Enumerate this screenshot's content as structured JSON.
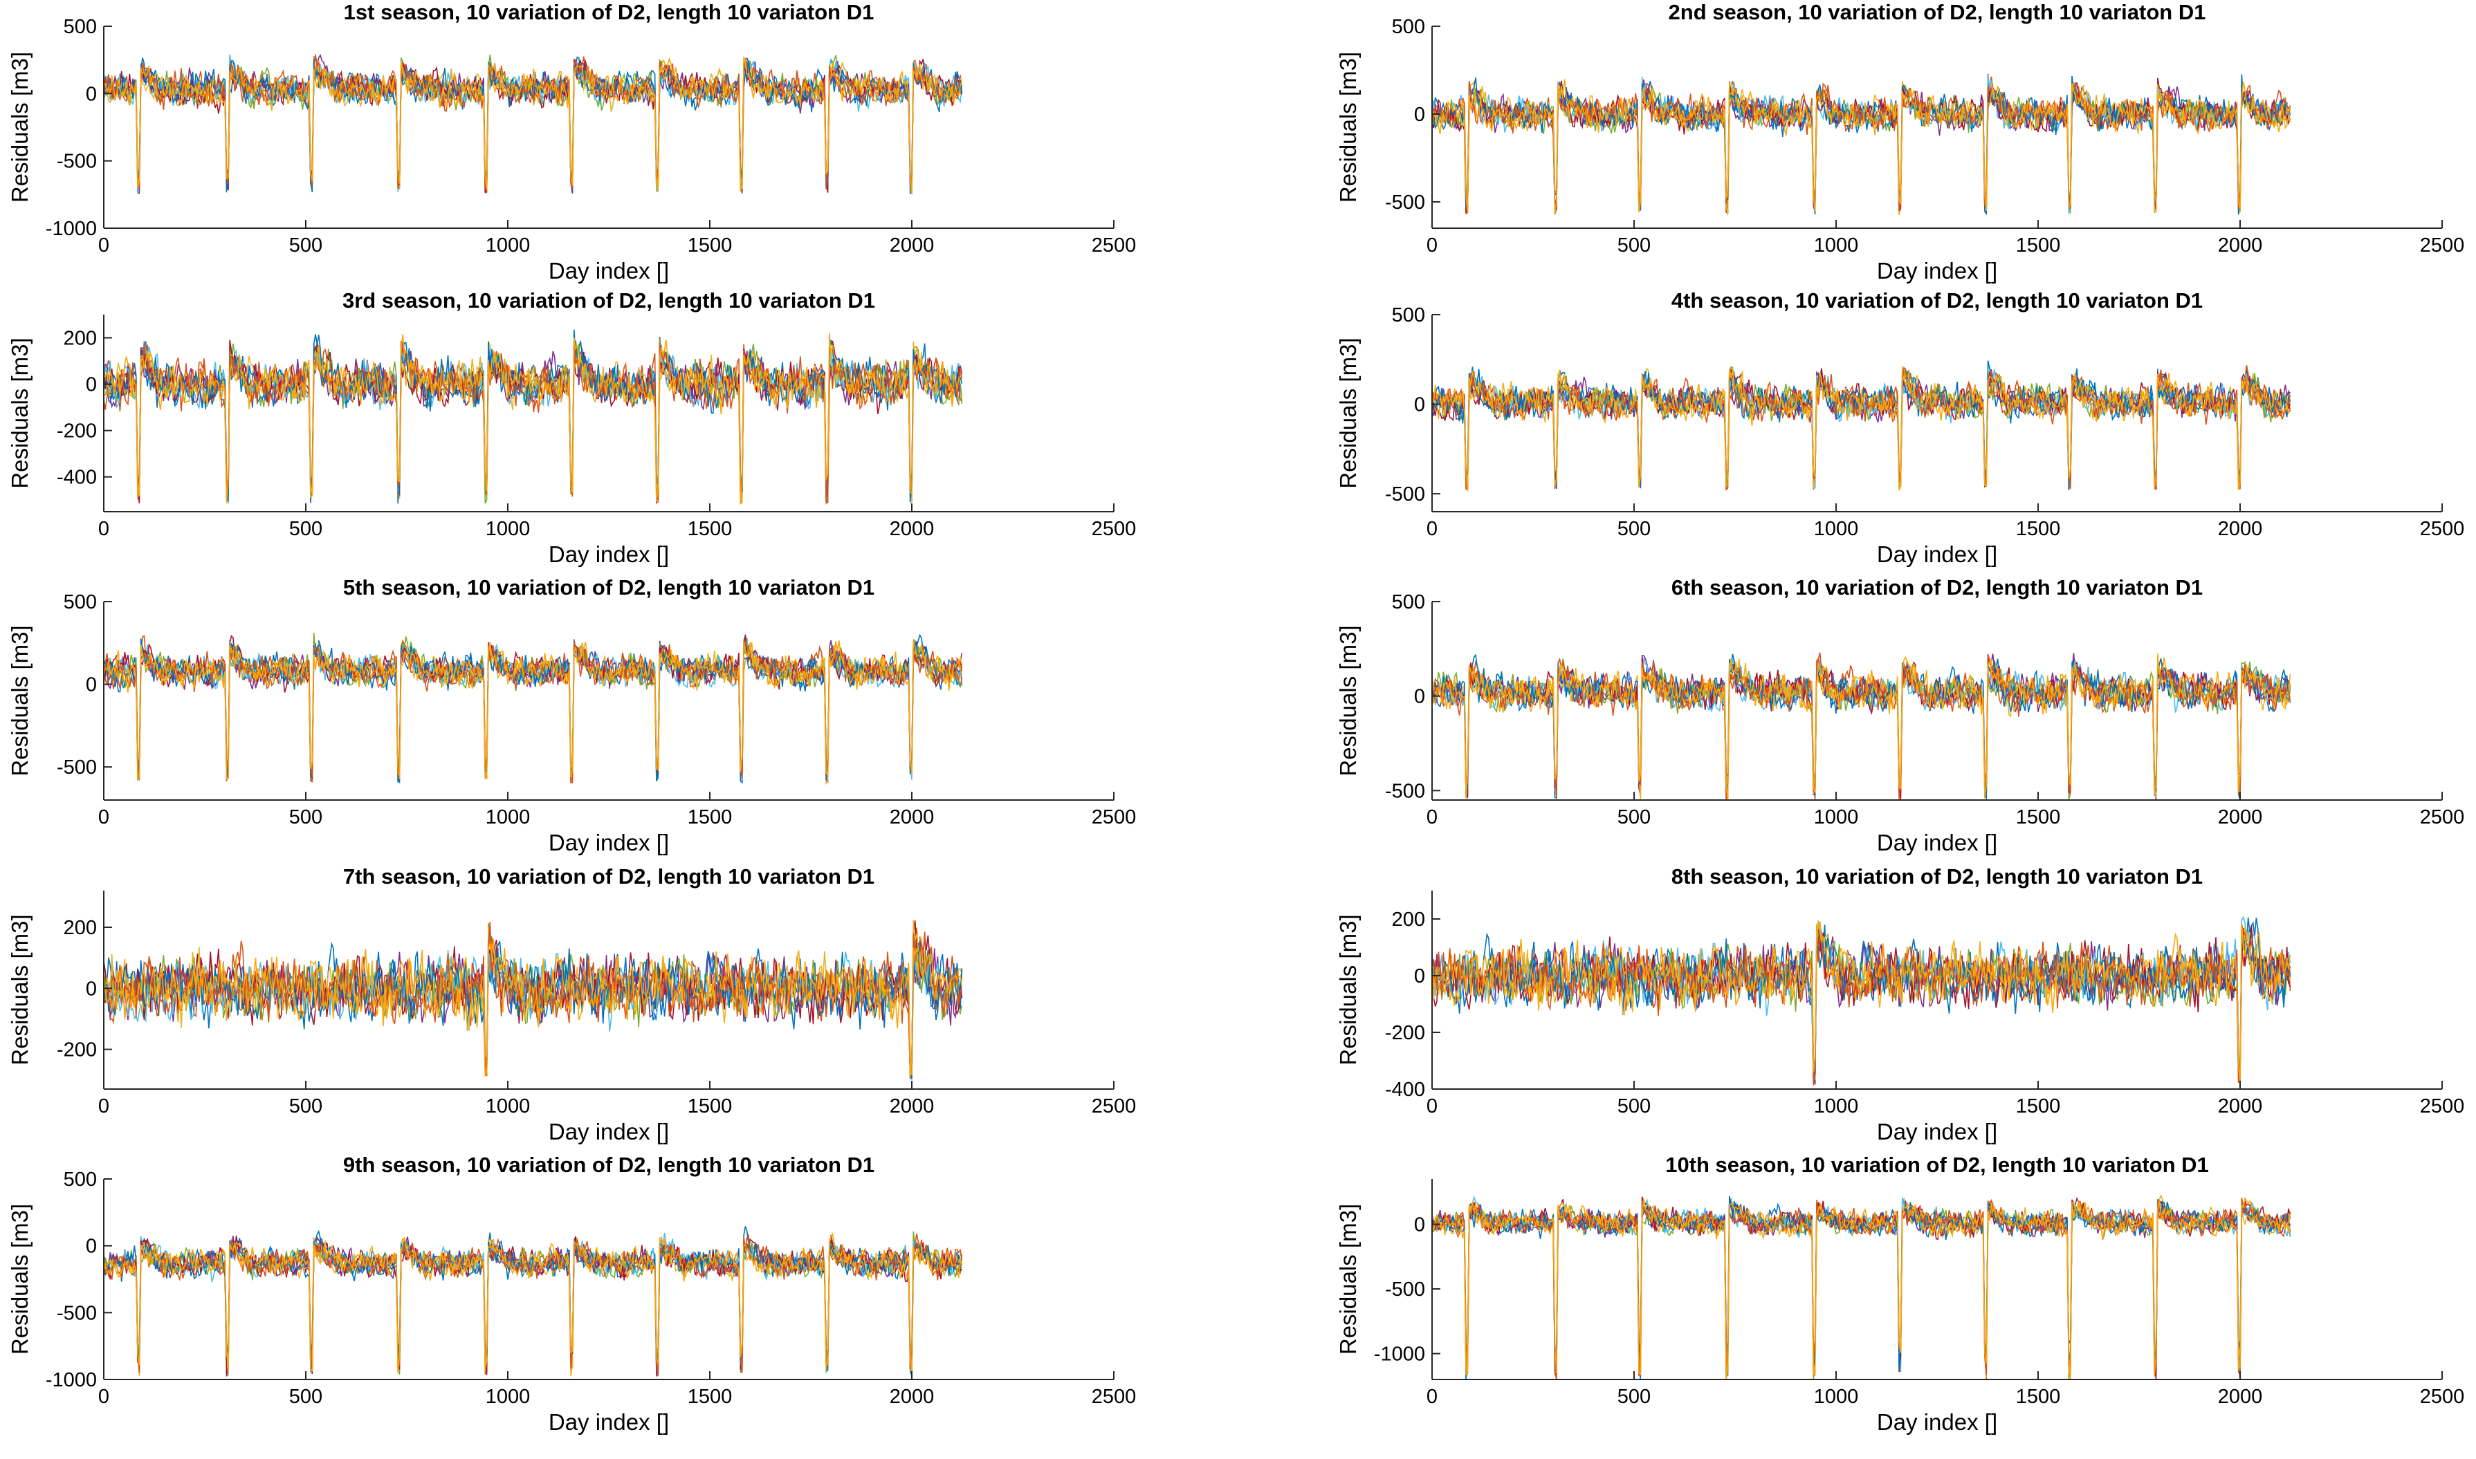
{
  "chart_data": [
    {
      "type": "line",
      "title": "1st season, 10 variation of D2, length 10 variaton D1",
      "xlabel": "Day index []",
      "ylabel": "Residuals [m3]",
      "xlim": [
        0,
        2500
      ],
      "ylim": [
        -1000,
        500
      ],
      "xticks": [
        "0",
        "500",
        "1000",
        "1500",
        "2000",
        "2500"
      ],
      "yticks": [
        "-1000",
        "-500",
        "0",
        "500"
      ],
      "ytick_values": [
        -1000,
        -500,
        0,
        500
      ],
      "n_days": 2125,
      "series_count": 10,
      "base": 30,
      "noise": 140,
      "spike_days": [
        85,
        305,
        515,
        730,
        945,
        1160,
        1370,
        1580,
        1790,
        2000
      ],
      "spike_depth": -650
    },
    {
      "type": "line",
      "title": "2nd season, 10 variation of D2, length 10 variaton D1",
      "xlabel": "Day index []",
      "ylabel": "Residuals [m3]",
      "xlim": [
        0,
        2500
      ],
      "ylim": [
        -650,
        500
      ],
      "xticks": [
        "0",
        "500",
        "1000",
        "1500",
        "2000",
        "2500"
      ],
      "yticks": [
        "-500",
        "0",
        "500"
      ],
      "ytick_values": [
        -500,
        0,
        500
      ],
      "n_days": 2125,
      "series_count": 10,
      "base": 0,
      "noise": 110,
      "spike_days": [
        85,
        305,
        515,
        730,
        945,
        1160,
        1370,
        1580,
        1790,
        2000
      ],
      "spike_depth": -500
    },
    {
      "type": "line",
      "title": "3rd season, 10 variation of D2, length 10 variaton D1",
      "xlabel": "Day index []",
      "ylabel": "Residuals [m3]",
      "xlim": [
        0,
        2500
      ],
      "ylim": [
        -550,
        300
      ],
      "xticks": [
        "0",
        "500",
        "1000",
        "1500",
        "2000",
        "2500"
      ],
      "yticks": [
        "-400",
        "-200",
        "0",
        "200"
      ],
      "ytick_values": [
        -400,
        -200,
        0,
        200
      ],
      "n_days": 2125,
      "series_count": 10,
      "base": 0,
      "noise": 110,
      "spike_days": [
        85,
        305,
        515,
        730,
        945,
        1160,
        1370,
        1580,
        1790,
        2000
      ],
      "spike_depth": -450
    },
    {
      "type": "line",
      "title": "4th season, 10 variation of D2, length 10 variaton D1",
      "xlabel": "Day index []",
      "ylabel": "Residuals [m3]",
      "xlim": [
        0,
        2500
      ],
      "ylim": [
        -600,
        500
      ],
      "xticks": [
        "0",
        "500",
        "1000",
        "1500",
        "2000",
        "2500"
      ],
      "yticks": [
        "-500",
        "0",
        "500"
      ],
      "ytick_values": [
        -500,
        0,
        500
      ],
      "n_days": 2125,
      "series_count": 10,
      "base": 10,
      "noise": 110,
      "spike_days": [
        85,
        305,
        515,
        730,
        945,
        1160,
        1370,
        1580,
        1790,
        2000
      ],
      "spike_depth": -420
    },
    {
      "type": "line",
      "title": "5th season, 10 variation of D2, length 10 variaton D1",
      "xlabel": "Day index []",
      "ylabel": "Residuals [m3]",
      "xlim": [
        0,
        2500
      ],
      "ylim": [
        -700,
        500
      ],
      "xticks": [
        "0",
        "500",
        "1000",
        "1500",
        "2000",
        "2500"
      ],
      "yticks": [
        "-500",
        "0",
        "500"
      ],
      "ytick_values": [
        -500,
        0,
        500
      ],
      "n_days": 2125,
      "series_count": 10,
      "base": 80,
      "noise": 110,
      "spike_days": [
        85,
        305,
        515,
        730,
        945,
        1160,
        1370,
        1580,
        1790,
        2000
      ],
      "spike_depth": -520
    },
    {
      "type": "line",
      "title": "6th season, 10 variation of D2, length 10 variaton D1",
      "xlabel": "Day index []",
      "ylabel": "Residuals [m3]",
      "xlim": [
        0,
        2500
      ],
      "ylim": [
        -550,
        500
      ],
      "xticks": [
        "0",
        "500",
        "1000",
        "1500",
        "2000",
        "2500"
      ],
      "yticks": [
        "-500",
        "0",
        "500"
      ],
      "ytick_values": [
        -500,
        0,
        500
      ],
      "n_days": 2125,
      "series_count": 10,
      "base": 20,
      "noise": 110,
      "spike_days": [
        85,
        305,
        515,
        730,
        945,
        1160,
        1370,
        1580,
        1790,
        2000
      ],
      "spike_depth": -480
    },
    {
      "type": "line",
      "title": "7th season, 10 variation of D2, length 10 variaton D1",
      "xlabel": "Day index []",
      "ylabel": "Residuals [m3]",
      "xlim": [
        0,
        2500
      ],
      "ylim": [
        -330,
        320
      ],
      "xticks": [
        "0",
        "500",
        "1000",
        "1500",
        "2000",
        "2500"
      ],
      "yticks": [
        "-200",
        "0",
        "200"
      ],
      "ytick_values": [
        -200,
        0,
        200
      ],
      "n_days": 2125,
      "series_count": 10,
      "base": 0,
      "noise": 120,
      "spike_days": [
        945,
        2000
      ],
      "spike_depth": -260
    },
    {
      "type": "line",
      "title": "8th season, 10 variation of D2, length 10 variaton D1",
      "xlabel": "Day index []",
      "ylabel": "Residuals [m3]",
      "xlim": [
        0,
        2500
      ],
      "ylim": [
        -400,
        300
      ],
      "xticks": [
        "0",
        "500",
        "1000",
        "1500",
        "2000",
        "2500"
      ],
      "yticks": [
        "-400",
        "-200",
        "0",
        "200"
      ],
      "ytick_values": [
        -400,
        -200,
        0,
        200
      ],
      "n_days": 2125,
      "series_count": 10,
      "base": 0,
      "noise": 120,
      "spike_days": [
        945,
        2000
      ],
      "spike_depth": -340
    },
    {
      "type": "line",
      "title": "9th season, 10 variation of D2, length 10 variaton D1",
      "xlabel": "Day index []",
      "ylabel": "Residuals [m3]",
      "xlim": [
        0,
        2500
      ],
      "ylim": [
        -1000,
        500
      ],
      "xticks": [
        "0",
        "500",
        "1000",
        "1500",
        "2000",
        "2500"
      ],
      "yticks": [
        "-1000",
        "-500",
        "0",
        "500"
      ],
      "ytick_values": [
        -1000,
        -500,
        0,
        500
      ],
      "n_days": 2125,
      "series_count": 10,
      "base": -130,
      "noise": 120,
      "spike_days": [
        85,
        305,
        515,
        730,
        945,
        1160,
        1370,
        1580,
        1790,
        2000
      ],
      "spike_depth": -850
    },
    {
      "type": "line",
      "title": "10th season, 10 variation of D2, length 10 variaton D1",
      "xlabel": "Day index []",
      "ylabel": "Residuals [m3]",
      "xlim": [
        0,
        2500
      ],
      "ylim": [
        -1200,
        350
      ],
      "xticks": [
        "0",
        "500",
        "1000",
        "1500",
        "2000",
        "2500"
      ],
      "yticks": [
        "-1000",
        "-500",
        "0"
      ],
      "ytick_values": [
        -1000,
        -500,
        0
      ],
      "n_days": 2125,
      "series_count": 10,
      "base": 10,
      "noise": 110,
      "spike_days": [
        85,
        305,
        515,
        730,
        945,
        1160,
        1370,
        1580,
        1790,
        2000
      ],
      "spike_depth": -1050
    }
  ],
  "colors": {
    "series": [
      "#0072bd",
      "#d95319",
      "#7e2f8e",
      "#77ac30",
      "#4dbeee",
      "#a2142f",
      "#edb120",
      "#0072bd",
      "#d95319",
      "#ffa500"
    ],
    "axis": "#262626",
    "background": "#ffffff"
  }
}
